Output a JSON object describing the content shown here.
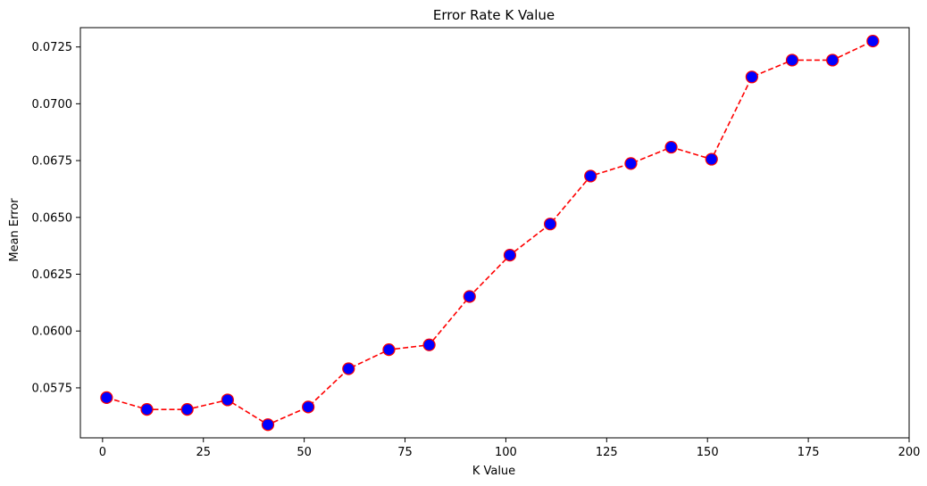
{
  "chart_data": {
    "type": "line",
    "title": "Error Rate K Value",
    "xlabel": "K Value",
    "ylabel": "Mean Error",
    "xlim": [
      -5.5,
      200
    ],
    "ylim": [
      0.0553,
      0.07335
    ],
    "xticks": [
      0,
      25,
      50,
      75,
      100,
      125,
      150,
      175,
      200
    ],
    "yticks": [
      0.0575,
      0.06,
      0.0625,
      0.065,
      0.0675,
      0.07,
      0.0725
    ],
    "ytick_labels": [
      "0.0575",
      "0.0600",
      "0.0625",
      "0.0650",
      "0.0675",
      "0.0700",
      "0.0725"
    ],
    "grid": false,
    "series": [
      {
        "x": [
          1,
          11,
          21,
          31,
          41,
          51,
          61,
          71,
          81,
          91,
          101,
          111,
          121,
          131,
          141,
          151,
          161,
          171,
          181,
          191
        ],
        "values": [
          0.05707,
          0.05655,
          0.05655,
          0.05697,
          0.05588,
          0.05666,
          0.05834,
          0.05918,
          0.05939,
          0.06152,
          0.06334,
          0.06471,
          0.06682,
          0.06737,
          0.06809,
          0.06756,
          0.07118,
          0.07192,
          0.07192,
          0.07276
        ],
        "line_color": "#ff0000",
        "line_style": "dashed",
        "marker": "circle",
        "marker_face_color": "#0000ff",
        "marker_edge_color": "#ff0000"
      }
    ]
  }
}
